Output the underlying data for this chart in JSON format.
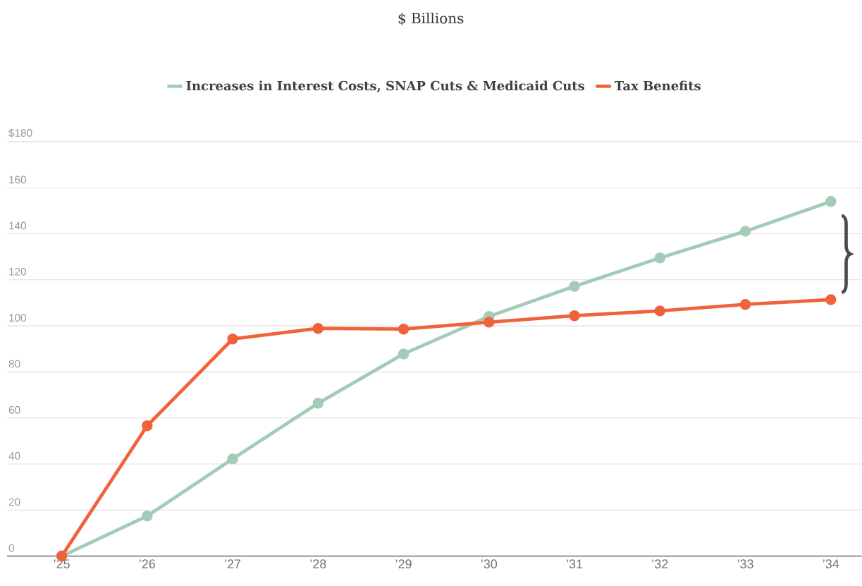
{
  "chart_data": {
    "type": "line",
    "title": "$ Billions",
    "categories": [
      "’25",
      "’26",
      "’27",
      "’28",
      "’29",
      "’30",
      "’31",
      "’32",
      "’33",
      "’34"
    ],
    "series": [
      {
        "name": "Increases in Interest Costs, SNAP Cuts & Medicaid Cuts",
        "color": "#a3cbb5",
        "values": [
          0,
          17.4,
          42.2,
          66.4,
          87.8,
          104.1,
          117.2,
          129.5,
          141.1,
          154.0
        ]
      },
      {
        "name": "Tax Benefits",
        "color": "#f0623a",
        "values": [
          0,
          56.6,
          94.3,
          98.9,
          98.6,
          101.6,
          104.4,
          106.5,
          109.3,
          111.4
        ]
      }
    ],
    "ylim": [
      0,
      180
    ],
    "yticks": [
      0,
      20,
      40,
      60,
      80,
      100,
      120,
      140,
      160,
      {
        "value": 180,
        "label": "$180"
      }
    ],
    "grid": "y",
    "legend": "top",
    "marker": "circle",
    "line_style": "solid"
  }
}
